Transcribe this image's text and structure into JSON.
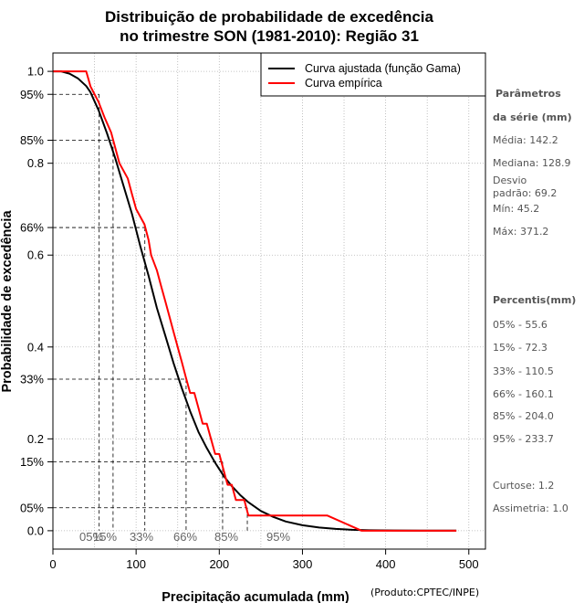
{
  "title_line1": "Distribuição de probabilidade de excedência",
  "title_line2": "no trimestre SON (1981-2010): Região 31",
  "credit": "(Produto:CPTEC/INPE)",
  "colors": {
    "fitted": "#000000",
    "empirical": "#ff0000",
    "grid": "#b3b3b3",
    "percentile_text": "#666666"
  },
  "chart_data": {
    "type": "line",
    "xlabel": "Precipitação acumulada (mm)",
    "ylabel": "Probabilidade de excedência",
    "xlim": [
      0,
      520
    ],
    "ylim": [
      -0.04,
      1.04
    ],
    "x_ticks": [
      0,
      100,
      200,
      300,
      400,
      500
    ],
    "y_ticks": [
      {
        "value": 0.0,
        "label": "0.0"
      },
      {
        "value": 0.05,
        "label": "05%"
      },
      {
        "value": 0.15,
        "label": "15%"
      },
      {
        "value": 0.2,
        "label": "0.2"
      },
      {
        "value": 0.33,
        "label": "33%"
      },
      {
        "value": 0.4,
        "label": "0.4"
      },
      {
        "value": 0.6,
        "label": "0.6"
      },
      {
        "value": 0.66,
        "label": "66%"
      },
      {
        "value": 0.8,
        "label": "0.8"
      },
      {
        "value": 0.85,
        "label": "85%"
      },
      {
        "value": 0.95,
        "label": "95%"
      },
      {
        "value": 1.0,
        "label": "1.0"
      }
    ],
    "grid_x": [
      50,
      100,
      150,
      200,
      250,
      300,
      350,
      400,
      450,
      500
    ],
    "grid_y": [
      0.0,
      0.2,
      0.4,
      0.6,
      0.8,
      1.0
    ],
    "legend": {
      "position": "top-right",
      "entries": [
        "Curva ajustada (função Gama)",
        "Curva empírica"
      ]
    },
    "percentiles": [
      {
        "label": "05%",
        "x": 55.6,
        "p": 0.95
      },
      {
        "label": "15%",
        "x": 72.3,
        "p": 0.85
      },
      {
        "label": "33%",
        "x": 110.5,
        "p": 0.66
      },
      {
        "label": "66%",
        "x": 160.1,
        "p": 0.33
      },
      {
        "label": "85%",
        "x": 204.0,
        "p": 0.15
      },
      {
        "label": "95%",
        "x": 233.7,
        "p": 0.05
      }
    ],
    "series": [
      {
        "name": "Curva ajustada (função Gama)",
        "x": [
          0,
          10,
          20,
          30,
          40,
          45,
          55,
          65,
          75,
          85,
          95,
          105,
          115,
          125,
          135,
          145,
          155,
          165,
          175,
          185,
          195,
          205,
          215,
          225,
          235,
          250,
          265,
          280,
          300,
          320,
          340,
          360,
          380,
          410,
          440,
          485
        ],
        "y": [
          1.0,
          1.0,
          0.995,
          0.985,
          0.968,
          0.955,
          0.915,
          0.865,
          0.81,
          0.75,
          0.69,
          0.62,
          0.555,
          0.485,
          0.425,
          0.365,
          0.31,
          0.26,
          0.215,
          0.18,
          0.148,
          0.12,
          0.097,
          0.078,
          0.062,
          0.043,
          0.03,
          0.02,
          0.012,
          0.007,
          0.004,
          0.002,
          0.001,
          0.0005,
          0.0002,
          0.0001
        ]
      },
      {
        "name": "Curva empírica",
        "x": [
          0,
          40,
          45.2,
          55,
          62,
          70,
          75,
          80,
          90,
          95,
          100,
          110,
          115,
          118,
          125,
          130,
          135,
          140,
          145,
          150,
          155,
          160,
          165,
          170,
          175,
          180,
          185,
          190,
          195,
          200,
          205,
          210,
          215,
          220,
          225,
          230,
          235,
          240,
          250,
          280,
          300,
          330,
          371.2,
          420,
          485
        ],
        "y": [
          1.0,
          1.0,
          0.967,
          0.933,
          0.9,
          0.867,
          0.833,
          0.8,
          0.767,
          0.733,
          0.7,
          0.667,
          0.633,
          0.6,
          0.567,
          0.533,
          0.5,
          0.467,
          0.433,
          0.4,
          0.367,
          0.333,
          0.3,
          0.3,
          0.267,
          0.233,
          0.233,
          0.2,
          0.167,
          0.167,
          0.133,
          0.1,
          0.1,
          0.067,
          0.067,
          0.067,
          0.033,
          0.033,
          0.033,
          0.033,
          0.033,
          0.033,
          0.0,
          0.0,
          0.0
        ]
      }
    ]
  },
  "sidebar": {
    "params_title_1": "Parâmetros",
    "params_title_2": "da série (mm)",
    "media": "Média: 142.2",
    "mediana": "Mediana: 128.9",
    "desvio_1": "Desvio",
    "desvio_2": "padrão: 69.2",
    "min": "Mín: 45.2",
    "max": "Máx: 371.2",
    "percentis_title": "Percentis(mm)",
    "p05": "05% - 55.6",
    "p15": "15% - 72.3",
    "p33": "33% - 110.5",
    "p66": "66% - 160.1",
    "p85": "85% - 204.0",
    "p95": "95% - 233.7",
    "curtose": "Curtose: 1.2",
    "assimetria": "Assimetria: 1.0"
  }
}
